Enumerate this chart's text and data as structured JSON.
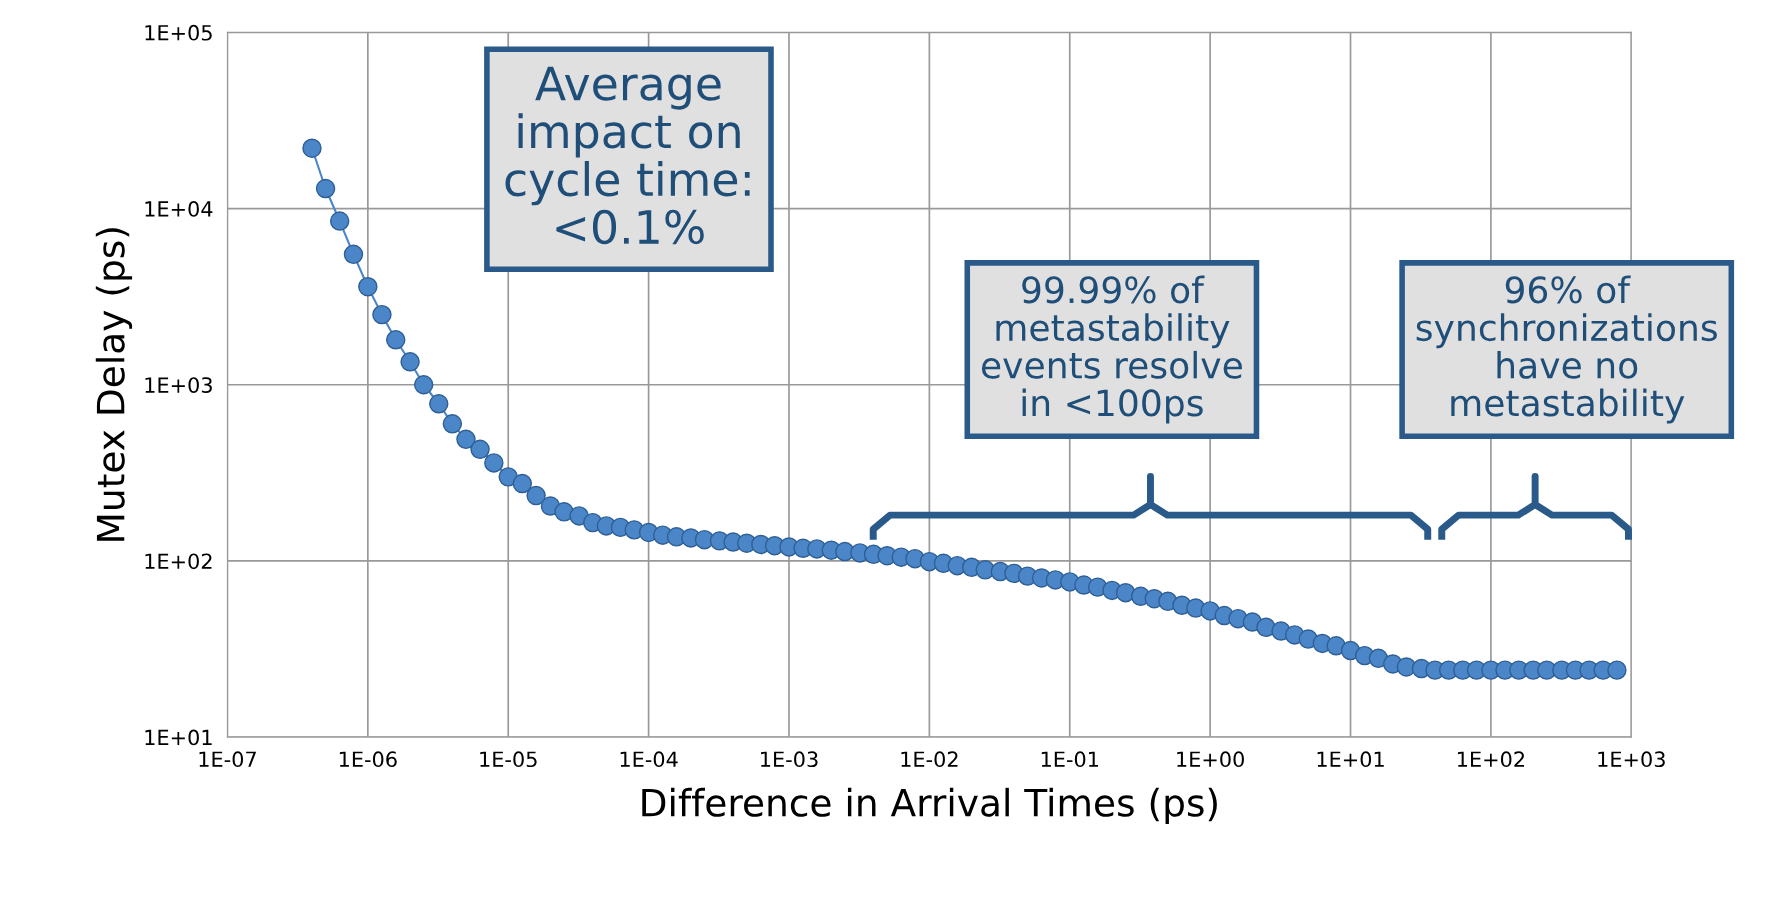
{
  "chart_data": {
    "type": "line",
    "xlabel": "Difference in Arrival Times (ps)",
    "ylabel": "Mutex Delay (ps)",
    "log": "xy",
    "grid": true,
    "marker": "circle",
    "line_style": "solid",
    "xlim": [
      1e-07,
      1000
    ],
    "ylim": [
      10,
      100000
    ],
    "xticks": [
      {
        "value": 1e-07,
        "label": "1E-07"
      },
      {
        "value": 1e-06,
        "label": "1E-06"
      },
      {
        "value": 1e-05,
        "label": "1E-05"
      },
      {
        "value": 0.0001,
        "label": "1E-04"
      },
      {
        "value": 0.001,
        "label": "1E-03"
      },
      {
        "value": 0.01,
        "label": "1E-02"
      },
      {
        "value": 0.1,
        "label": "1E-01"
      },
      {
        "value": 1,
        "label": "1E+00"
      },
      {
        "value": 10,
        "label": "1E+01"
      },
      {
        "value": 100,
        "label": "1E+02"
      },
      {
        "value": 1000,
        "label": "1E+03"
      }
    ],
    "yticks": [
      {
        "value": 10,
        "label": "1E+01"
      },
      {
        "value": 100,
        "label": "1E+02"
      },
      {
        "value": 1000,
        "label": "1E+03"
      },
      {
        "value": 10000,
        "label": "1E+04"
      },
      {
        "value": 100000,
        "label": "1E+05"
      }
    ],
    "series": [
      {
        "color": "#4a86c8",
        "x": [
          4e-07,
          5e-07,
          6.3e-07,
          7.9e-07,
          1e-06,
          1.26e-06,
          1.58e-06,
          2e-06,
          2.5e-06,
          3.2e-06,
          4e-06,
          5e-06,
          6.3e-06,
          7.9e-06,
          1e-05,
          1.26e-05,
          1.58e-05,
          2e-05,
          2.5e-05,
          3.2e-05,
          4e-05,
          5e-05,
          6.3e-05,
          7.9e-05,
          0.0001,
          0.000126,
          0.000158,
          0.0002,
          0.00025,
          0.00032,
          0.0004,
          0.0005,
          0.00063,
          0.00079,
          0.001,
          0.00126,
          0.00158,
          0.002,
          0.0025,
          0.0032,
          0.004,
          0.005,
          0.0063,
          0.0079,
          0.01,
          0.0126,
          0.0158,
          0.02,
          0.025,
          0.032,
          0.04,
          0.05,
          0.063,
          0.079,
          0.1,
          0.126,
          0.158,
          0.2,
          0.25,
          0.32,
          0.4,
          0.5,
          0.63,
          0.79,
          1.0,
          1.26,
          1.58,
          2.0,
          2.5,
          3.2,
          4.0,
          5.0,
          6.3,
          7.9,
          10,
          12.6,
          15.8,
          20,
          25,
          32,
          40,
          50,
          63,
          79,
          100,
          126,
          158,
          200,
          250,
          320,
          400,
          500,
          630,
          790
        ],
        "values": [
          22000,
          13000,
          8500,
          5500,
          3600,
          2500,
          1800,
          1350,
          1000,
          780,
          600,
          490,
          430,
          360,
          300,
          275,
          235,
          205,
          190,
          180,
          165,
          158,
          155,
          150,
          145,
          140,
          137,
          135,
          132,
          130,
          128,
          126,
          124,
          122,
          120,
          118,
          117,
          115,
          113,
          111,
          109,
          107,
          105,
          103,
          99,
          97,
          94,
          92,
          89,
          87,
          85,
          82,
          80,
          78,
          76,
          73,
          71,
          68,
          66,
          63,
          61,
          59,
          56,
          54,
          52,
          49,
          47,
          45,
          42,
          40,
          38,
          36,
          34,
          33,
          31,
          29,
          28,
          26,
          25,
          24.5,
          24,
          24,
          24,
          24,
          24,
          24,
          24,
          24,
          24,
          24,
          24,
          24,
          24,
          24
        ]
      }
    ],
    "annotations": [
      "Average\nimpact on\ncycle time:\n<0.1%",
      "99.99% of\nmetastability\nevents resolve\nin <100ps",
      "96% of\nsynchronizations\nhave no\nmetastability"
    ]
  }
}
